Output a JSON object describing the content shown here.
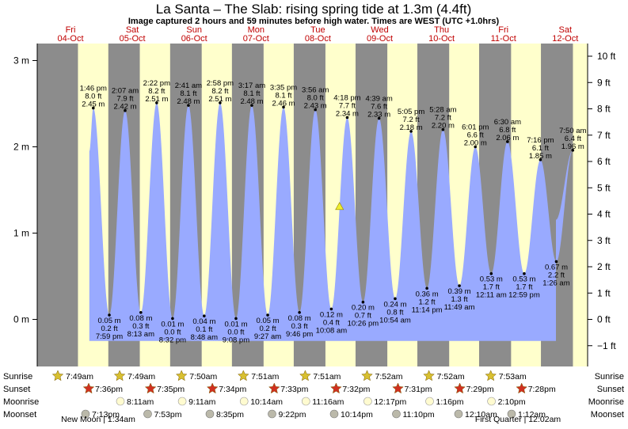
{
  "chart_data": {
    "type": "area",
    "title": "La Santa – The Slab: rising  spring tide at 1.3m (4.4ft)",
    "subtitle": "Image captured 2 hours and 59 minutes before high water. Times are WEST (UTC +1.0hrs)",
    "left_axis_ticks": [
      "0 m",
      "1 m",
      "2 m",
      "3 m"
    ],
    "left_axis_values": [
      0,
      1,
      2,
      3
    ],
    "right_axis_ticks": [
      "−1 ft",
      "0 ft",
      "1 ft",
      "2 ft",
      "3 ft",
      "4 ft",
      "5 ft",
      "6 ft",
      "7 ft",
      "8 ft",
      "9 ft",
      "10 ft"
    ],
    "right_axis_values": [
      -1,
      0,
      1,
      2,
      3,
      4,
      5,
      6,
      7,
      8,
      9,
      10
    ],
    "ylim_m": [
      -0.45,
      3.1
    ],
    "x_range_days": [
      0,
      8.6
    ],
    "days": [
      {
        "dow": "Fri",
        "date": "04-Oct"
      },
      {
        "dow": "Sat",
        "date": "05-Oct"
      },
      {
        "dow": "Sun",
        "date": "06-Oct"
      },
      {
        "dow": "Mon",
        "date": "07-Oct"
      },
      {
        "dow": "Tue",
        "date": "08-Oct"
      },
      {
        "dow": "Wed",
        "date": "09-Oct"
      },
      {
        "dow": "Thu",
        "date": "10-Oct"
      },
      {
        "dow": "Fri",
        "date": "11-Oct"
      },
      {
        "dow": "Sat",
        "date": "12-Oct"
      }
    ],
    "tides": [
      {
        "type": "high",
        "day": 0,
        "time": "1:46 pm",
        "m": "2.45 m",
        "ft": "8.0 ft",
        "val": 2.45
      },
      {
        "type": "low",
        "day": 0,
        "time": "7:59 pm",
        "m": "0.05 m",
        "ft": "0.2 ft",
        "val": 0.05
      },
      {
        "type": "high",
        "day": 1,
        "time": "2:07 am",
        "m": "2.42 m",
        "ft": "7.9 ft",
        "val": 2.42
      },
      {
        "type": "low",
        "day": 1,
        "time": "8:13 am",
        "m": "0.08 m",
        "ft": "0.3 ft",
        "val": 0.08
      },
      {
        "type": "high",
        "day": 1,
        "time": "2:22 pm",
        "m": "2.51 m",
        "ft": "8.2 ft",
        "val": 2.51
      },
      {
        "type": "low",
        "day": 1,
        "time": "8:32 pm",
        "m": "0.01 m",
        "ft": "0.0 ft",
        "val": 0.01
      },
      {
        "type": "high",
        "day": 2,
        "time": "2:41 am",
        "m": "2.48 m",
        "ft": "8.1 ft",
        "val": 2.48
      },
      {
        "type": "low",
        "day": 2,
        "time": "8:48 am",
        "m": "0.04 m",
        "ft": "0.1 ft",
        "val": 0.04
      },
      {
        "type": "high",
        "day": 2,
        "time": "2:58 pm",
        "m": "2.51 m",
        "ft": "8.2 ft",
        "val": 2.51
      },
      {
        "type": "low",
        "day": 2,
        "time": "9:08 pm",
        "m": "0.01 m",
        "ft": "0.0 ft",
        "val": 0.01
      },
      {
        "type": "high",
        "day": 3,
        "time": "3:17 am",
        "m": "2.48 m",
        "ft": "8.1 ft",
        "val": 2.48
      },
      {
        "type": "low",
        "day": 3,
        "time": "9:27 am",
        "m": "0.05 m",
        "ft": "0.2 ft",
        "val": 0.05
      },
      {
        "type": "high",
        "day": 3,
        "time": "3:35 pm",
        "m": "2.46 m",
        "ft": "8.1 ft",
        "val": 2.46
      },
      {
        "type": "low",
        "day": 3,
        "time": "9:46 pm",
        "m": "0.08 m",
        "ft": "0.3 ft",
        "val": 0.08
      },
      {
        "type": "high",
        "day": 4,
        "time": "3:56 am",
        "m": "2.43 m",
        "ft": "8.0 ft",
        "val": 2.43
      },
      {
        "type": "low",
        "day": 4,
        "time": "10:08 am",
        "m": "0.12 m",
        "ft": "0.4 ft",
        "val": 0.12
      },
      {
        "type": "high",
        "day": 4,
        "time": "4:18 pm",
        "m": "2.34 m",
        "ft": "7.7 ft",
        "val": 2.34
      },
      {
        "type": "low",
        "day": 4,
        "time": "10:26 pm",
        "m": "0.20 m",
        "ft": "0.7 ft",
        "val": 0.2
      },
      {
        "type": "high",
        "day": 5,
        "time": "4:39 am",
        "m": "2.33 m",
        "ft": "7.6 ft",
        "val": 2.33
      },
      {
        "type": "low",
        "day": 5,
        "time": "10:54 am",
        "m": "0.24 m",
        "ft": "0.8 ft",
        "val": 0.24
      },
      {
        "type": "high",
        "day": 5,
        "time": "5:05 pm",
        "m": "2.18 m",
        "ft": "7.2 ft",
        "val": 2.18
      },
      {
        "type": "low",
        "day": 5,
        "time": "11:14 pm",
        "m": "0.36 m",
        "ft": "1.2 ft",
        "val": 0.36
      },
      {
        "type": "high",
        "day": 6,
        "time": "5:28 am",
        "m": "2.20 m",
        "ft": "7.2 ft",
        "val": 2.2
      },
      {
        "type": "low",
        "day": 6,
        "time": "11:49 am",
        "m": "0.39 m",
        "ft": "1.3 ft",
        "val": 0.39
      },
      {
        "type": "high",
        "day": 6,
        "time": "6:01 pm",
        "m": "2.00 m",
        "ft": "6.6 ft",
        "val": 2.0
      },
      {
        "type": "low",
        "day": 7,
        "time": "12:11 am",
        "m": "0.53 m",
        "ft": "1.7 ft",
        "val": 0.53
      },
      {
        "type": "high",
        "day": 7,
        "time": "6:30 am",
        "m": "2.06 m",
        "ft": "6.8 ft",
        "val": 2.06
      },
      {
        "type": "low",
        "day": 7,
        "time": "12:59 pm",
        "m": "0.53 m",
        "ft": "1.7 ft",
        "val": 0.53
      },
      {
        "type": "high",
        "day": 7,
        "time": "7:16 pm",
        "m": "1.85 m",
        "ft": "6.1 ft",
        "val": 1.85
      },
      {
        "type": "low",
        "day": 8,
        "time": "1:26 am",
        "m": "0.67 m",
        "ft": "2.2 ft",
        "val": 0.67
      },
      {
        "type": "high",
        "day": 8,
        "time": "7:50 am",
        "m": "1.96 m",
        "ft": "6.4 ft",
        "val": 1.96
      }
    ],
    "current_level_m": 1.3,
    "current_time": "Tue 08-Oct ≈1:19 pm",
    "row_labels": [
      "Sunrise",
      "Sunset",
      "Moonrise",
      "Moonset"
    ],
    "sunrise": [
      "7:49am",
      "7:49am",
      "7:50am",
      "7:51am",
      "7:51am",
      "7:52am",
      "7:52am",
      "7:53am"
    ],
    "sunset": [
      "7:36pm",
      "7:35pm",
      "7:34pm",
      "7:33pm",
      "7:32pm",
      "7:31pm",
      "7:29pm",
      "7:28pm"
    ],
    "moonrise": [
      "8:11am",
      "9:11am",
      "10:14am",
      "11:16am",
      "12:17pm",
      "1:16pm",
      "2:10pm"
    ],
    "moonset": [
      "7:13pm",
      "7:53pm",
      "8:35pm",
      "9:22pm",
      "10:14pm",
      "11:10pm",
      "12:10am",
      "1:12am"
    ],
    "moon_phases": [
      "New Moon | 1:34am",
      "First Quarter | 12:02am"
    ],
    "colors": {
      "night": "#8c8c8c",
      "day": "#ffffcc",
      "water": "#99aaff",
      "day_label": "#c00000",
      "sunrise_star": "#d8c030",
      "sunset_star": "#d03020",
      "moonrise": "#fffbd0",
      "moonset": "#bbb9aa",
      "marker": "#eeee30"
    }
  }
}
